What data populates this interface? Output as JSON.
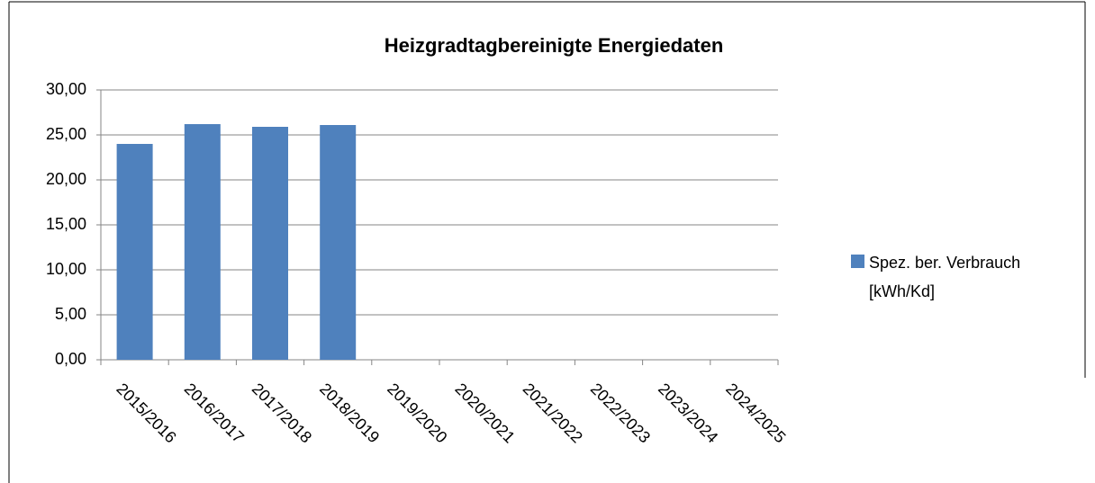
{
  "chart_data": {
    "type": "bar",
    "title": "Heizgradtagbereinigte Energiedaten",
    "categories": [
      "2015/2016",
      "2016/2017",
      "2017/2018",
      "2018/2019",
      "2019/2020",
      "2020/2021",
      "2021/2022",
      "2022/2023",
      "2023/2024",
      "2024/2025"
    ],
    "series": [
      {
        "name": "Spez. ber. Verbrauch [kWh/Kd]",
        "color": "#4f81bd",
        "values": [
          24.0,
          26.2,
          25.9,
          26.1,
          null,
          null,
          null,
          null,
          null,
          null
        ]
      }
    ],
    "ylim": [
      0,
      30
    ],
    "yticks": [
      {
        "value": 0,
        "label": "0,00"
      },
      {
        "value": 5,
        "label": "5,00"
      },
      {
        "value": 10,
        "label": "10,00"
      },
      {
        "value": 15,
        "label": "15,00"
      },
      {
        "value": 20,
        "label": "20,00"
      },
      {
        "value": 25,
        "label": "25,00"
      },
      {
        "value": 30,
        "label": "30,00"
      }
    ],
    "grid": true,
    "legend": "right"
  }
}
